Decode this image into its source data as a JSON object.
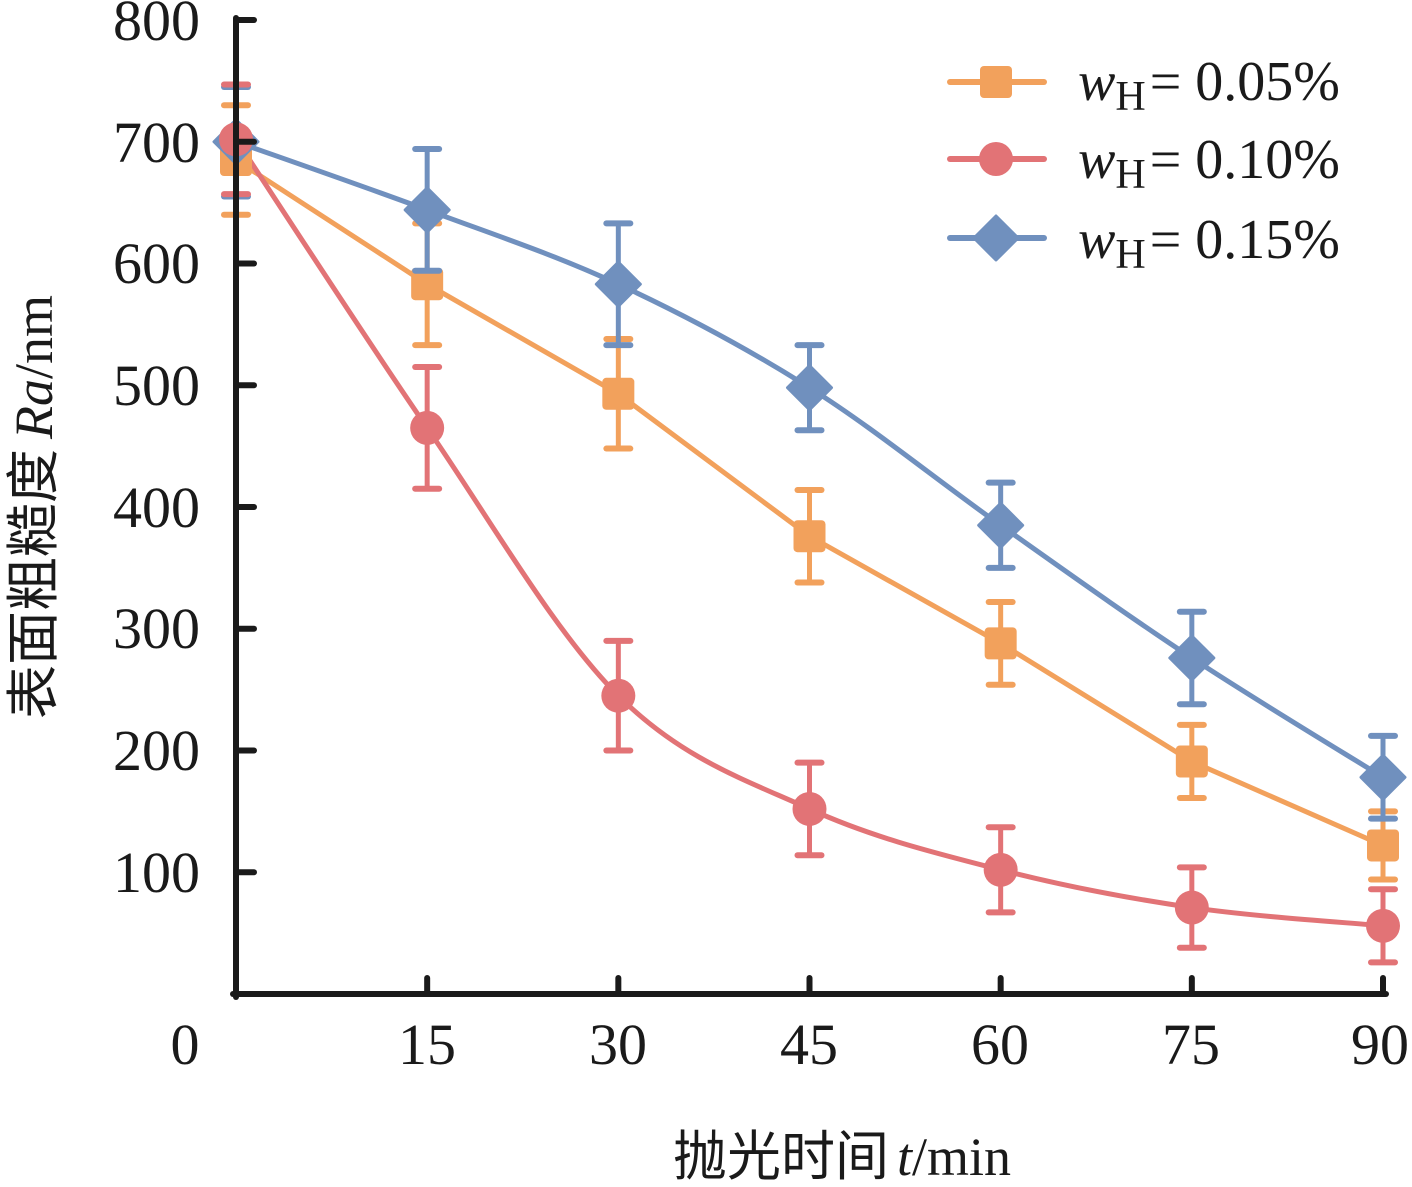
{
  "chart_data": {
    "type": "line",
    "title": "",
    "xlabel": {
      "prefix": "抛光时间",
      "var": "t",
      "unit": "/min"
    },
    "ylabel": {
      "prefix": "表面粗糙度",
      "var": "Ra",
      "unit": "/nm"
    },
    "xlim": [
      0,
      90
    ],
    "ylim": [
      0,
      800
    ],
    "x_ticks": [
      "0",
      "15",
      "30",
      "45",
      "60",
      "75",
      "90"
    ],
    "y_ticks": [
      "100",
      "200",
      "300",
      "400",
      "500",
      "600",
      "700",
      "800"
    ],
    "x": [
      0,
      15,
      30,
      45,
      60,
      75,
      90
    ],
    "grid": false,
    "legend_position": "top-right",
    "series": [
      {
        "name": "wH = 0.05%",
        "label_var": "w",
        "label_sub": "H",
        "label_value": "= 0.05%",
        "marker": "square",
        "color": "#F2A15C",
        "smooth": false,
        "values": [
          685,
          583,
          493,
          376,
          288,
          191,
          122
        ],
        "errors": [
          45,
          50,
          45,
          38,
          34,
          30,
          28
        ]
      },
      {
        "name": "wH = 0.10%",
        "label_var": "w",
        "label_sub": "H",
        "label_value": "= 0.10%",
        "marker": "circle",
        "color": "#E27376",
        "smooth": true,
        "values": [
          702,
          465,
          245,
          152,
          102,
          71,
          56
        ],
        "errors": [
          45,
          50,
          45,
          38,
          35,
          33,
          30
        ]
      },
      {
        "name": "wH = 0.15%",
        "label_var": "w",
        "label_sub": "H",
        "label_value": "= 0.15%",
        "marker": "diamond",
        "color": "#7090BE",
        "smooth": true,
        "values": [
          700,
          644,
          583,
          498,
          385,
          276,
          178
        ],
        "errors": [
          45,
          50,
          50,
          35,
          35,
          38,
          34
        ]
      }
    ]
  }
}
